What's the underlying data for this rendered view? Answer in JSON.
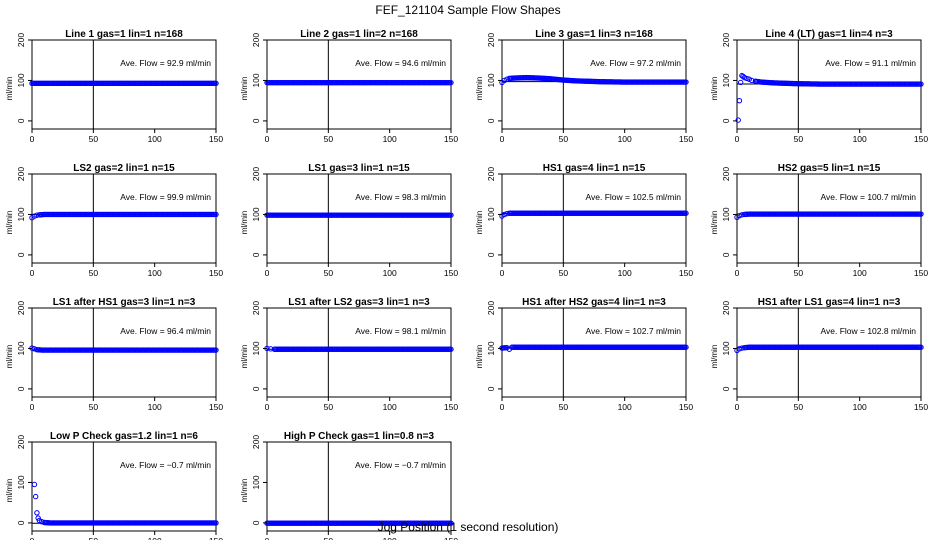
{
  "figure": {
    "title": "FEF_121104  Sample Flow Shapes",
    "xlabel": "Jog Position (1 second resolution)"
  },
  "colors": {
    "points": "#0000ff",
    "axes": "#000000",
    "background": "#ffffff"
  },
  "chart_data": [
    {
      "type": "scatter",
      "title": "Line 1 gas=1 lin=1 n=168",
      "ylabel": "ml/min",
      "annotation": "Ave. Flow = 92.9  ml/min",
      "xlim": [
        0,
        150
      ],
      "ylim": [
        -20,
        200
      ],
      "xticks": [
        0,
        50,
        100,
        150
      ],
      "yticks": [
        0,
        100,
        200
      ],
      "vline": 50,
      "hline": 92.9,
      "series": [
        {
          "x_range": [
            0,
            150
          ],
          "y": 92.9
        }
      ]
    },
    {
      "type": "scatter",
      "title": "Line 2 gas=1 lin=2 n=168",
      "ylabel": "ml/min",
      "annotation": "Ave. Flow = 94.6  ml/min",
      "xlim": [
        0,
        150
      ],
      "ylim": [
        -20,
        200
      ],
      "xticks": [
        0,
        50,
        100,
        150
      ],
      "yticks": [
        0,
        100,
        200
      ],
      "vline": 50,
      "hline": 94.6,
      "series": [
        {
          "x_range": [
            0,
            150
          ],
          "y": 94.6
        }
      ]
    },
    {
      "type": "scatter",
      "title": "Line 3 gas=1 lin=3 n=168",
      "ylabel": "ml/min",
      "annotation": "Ave. Flow = 97.2  ml/min",
      "xlim": [
        0,
        150
      ],
      "ylim": [
        -20,
        200
      ],
      "xticks": [
        0,
        50,
        100,
        150
      ],
      "yticks": [
        0,
        100,
        200
      ],
      "vline": 50,
      "hline": 97.2,
      "series": [
        {
          "points": [
            [
              0,
              95
            ],
            [
              2,
              100
            ],
            [
              4,
              103
            ],
            [
              6,
              105
            ],
            [
              10,
              106
            ],
            [
              20,
              107
            ],
            [
              30,
              106
            ],
            [
              40,
              104
            ],
            [
              50,
              101
            ],
            [
              60,
              99
            ],
            [
              70,
              98
            ],
            [
              80,
              97
            ],
            [
              100,
              96
            ],
            [
              150,
              96
            ]
          ]
        }
      ]
    },
    {
      "type": "scatter",
      "title": "Line 4 (LT) gas=1 lin=4 n=3",
      "ylabel": "ml/min",
      "annotation": "Ave. Flow = 91.1  ml/min",
      "xlim": [
        0,
        150
      ],
      "ylim": [
        -20,
        200
      ],
      "xticks": [
        0,
        50,
        100,
        150
      ],
      "yticks": [
        0,
        100,
        200
      ],
      "vline": 50,
      "hline": 91.1,
      "series": [
        {
          "points": [
            [
              1,
              2
            ],
            [
              2,
              50
            ],
            [
              3,
              95
            ],
            [
              4,
              112
            ],
            [
              5,
              110
            ],
            [
              6,
              107
            ],
            [
              8,
              105
            ],
            [
              10,
              103
            ],
            [
              12,
              100
            ],
            [
              15,
              98
            ],
            [
              20,
              96
            ],
            [
              25,
              95
            ],
            [
              30,
              94
            ],
            [
              40,
              93
            ],
            [
              50,
              92
            ],
            [
              70,
              91
            ],
            [
              100,
              91
            ],
            [
              150,
              91
            ]
          ]
        }
      ]
    },
    {
      "type": "scatter",
      "title": "LS2 gas=2 lin=1 n=15",
      "ylabel": "ml/min",
      "annotation": "Ave. Flow = 99.9  ml/min",
      "xlim": [
        0,
        150
      ],
      "ylim": [
        -20,
        200
      ],
      "xticks": [
        0,
        50,
        100,
        150
      ],
      "yticks": [
        0,
        100,
        200
      ],
      "vline": 50,
      "hline": 99.9,
      "series": [
        {
          "points": [
            [
              0,
              92
            ],
            [
              2,
              96
            ],
            [
              4,
              98
            ],
            [
              6,
              99
            ],
            [
              10,
              100
            ],
            [
              150,
              100
            ]
          ]
        }
      ]
    },
    {
      "type": "scatter",
      "title": "LS1 gas=3 lin=1 n=15",
      "ylabel": "ml/min",
      "annotation": "Ave. Flow = 98.3  ml/min",
      "xlim": [
        0,
        150
      ],
      "ylim": [
        -20,
        200
      ],
      "xticks": [
        0,
        50,
        100,
        150
      ],
      "yticks": [
        0,
        100,
        200
      ],
      "vline": 50,
      "hline": 98.3,
      "series": [
        {
          "x_range": [
            0,
            150
          ],
          "y": 98.3
        }
      ]
    },
    {
      "type": "scatter",
      "title": "HS1 gas=4 lin=1 n=15",
      "ylabel": "ml/min",
      "annotation": "Ave. Flow = 102.5  ml/min",
      "xlim": [
        0,
        150
      ],
      "ylim": [
        -20,
        200
      ],
      "xticks": [
        0,
        50,
        100,
        150
      ],
      "yticks": [
        0,
        100,
        200
      ],
      "vline": 50,
      "hline": 102.5,
      "series": [
        {
          "points": [
            [
              0,
              96
            ],
            [
              2,
              100
            ],
            [
              4,
              102
            ],
            [
              6,
              103
            ],
            [
              150,
              103
            ]
          ]
        }
      ]
    },
    {
      "type": "scatter",
      "title": "HS2 gas=5 lin=1 n=15",
      "ylabel": "ml/min",
      "annotation": "Ave. Flow = 100.7  ml/min",
      "xlim": [
        0,
        150
      ],
      "ylim": [
        -20,
        200
      ],
      "xticks": [
        0,
        50,
        100,
        150
      ],
      "yticks": [
        0,
        100,
        200
      ],
      "vline": 50,
      "hline": 100.7,
      "series": [
        {
          "points": [
            [
              0,
              93
            ],
            [
              2,
              97
            ],
            [
              4,
              99
            ],
            [
              6,
              100
            ],
            [
              10,
              101
            ],
            [
              150,
              101
            ]
          ]
        }
      ]
    },
    {
      "type": "scatter",
      "title": "LS1 after HS1 gas=3 lin=1 n=3",
      "ylabel": "ml/min",
      "annotation": "Ave. Flow = 96.4  ml/min",
      "xlim": [
        0,
        150
      ],
      "ylim": [
        -20,
        200
      ],
      "xticks": [
        0,
        50,
        100,
        150
      ],
      "yticks": [
        0,
        100,
        200
      ],
      "vline": 50,
      "hline": 96.4,
      "series": [
        {
          "points": [
            [
              0,
              101
            ],
            [
              2,
              99
            ],
            [
              4,
              97
            ],
            [
              8,
              96
            ],
            [
              150,
              96
            ]
          ]
        }
      ]
    },
    {
      "type": "scatter",
      "title": "LS1 after LS2 gas=3 lin=1 n=3",
      "ylabel": "ml/min",
      "annotation": "Ave. Flow = 98.1  ml/min",
      "xlim": [
        0,
        150
      ],
      "ylim": [
        -20,
        200
      ],
      "xticks": [
        0,
        50,
        100,
        150
      ],
      "yticks": [
        0,
        100,
        200
      ],
      "vline": 50,
      "hline": 98.1,
      "series": [
        {
          "points": [
            [
              0,
              100
            ],
            [
              3,
              99
            ],
            [
              6,
              98
            ],
            [
              150,
              98
            ]
          ]
        }
      ]
    },
    {
      "type": "scatter",
      "title": "HS1 after HS2 gas=4 lin=1 n=3",
      "ylabel": "ml/min",
      "annotation": "Ave. Flow = 102.7  ml/min",
      "xlim": [
        0,
        150
      ],
      "ylim": [
        -20,
        200
      ],
      "xticks": [
        0,
        50,
        100,
        150
      ],
      "yticks": [
        0,
        100,
        200
      ],
      "vline": 50,
      "hline": 102.7,
      "series": [
        {
          "points": [
            [
              0,
              101
            ],
            [
              4,
              102
            ],
            [
              6,
              98
            ],
            [
              8,
              103
            ],
            [
              150,
              103
            ]
          ]
        }
      ]
    },
    {
      "type": "scatter",
      "title": "HS1 after LS1 gas=4 lin=1 n=3",
      "ylabel": "ml/min",
      "annotation": "Ave. Flow = 102.8  ml/min",
      "xlim": [
        0,
        150
      ],
      "ylim": [
        -20,
        200
      ],
      "xticks": [
        0,
        50,
        100,
        150
      ],
      "yticks": [
        0,
        100,
        200
      ],
      "vline": 50,
      "hline": 102.8,
      "series": [
        {
          "points": [
            [
              0,
              95
            ],
            [
              2,
              99
            ],
            [
              4,
              101
            ],
            [
              6,
              102
            ],
            [
              10,
              103
            ],
            [
              150,
              103
            ]
          ]
        }
      ]
    },
    {
      "type": "scatter",
      "title": "Low P Check gas=1.2 lin=1 n=6",
      "ylabel": "ml/min",
      "annotation": "Ave. Flow = −0.7  ml/min",
      "xlim": [
        0,
        150
      ],
      "ylim": [
        -20,
        200
      ],
      "xticks": [
        0,
        50,
        100,
        150
      ],
      "yticks": [
        0,
        100,
        200
      ],
      "vline": 50,
      "hline": -0.7,
      "series": [
        {
          "points": [
            [
              2,
              95
            ],
            [
              3,
              65
            ],
            [
              4,
              25
            ],
            [
              5,
              12
            ],
            [
              6,
              6
            ],
            [
              8,
              3
            ],
            [
              10,
              1
            ],
            [
              15,
              0
            ],
            [
              150,
              0
            ]
          ]
        }
      ]
    },
    {
      "type": "scatter",
      "title": "High P Check gas=1 lin=0.8 n=3",
      "ylabel": "ml/min",
      "annotation": "Ave. Flow = −0.7  ml/min",
      "xlim": [
        0,
        150
      ],
      "ylim": [
        -20,
        200
      ],
      "xticks": [
        0,
        50,
        100,
        150
      ],
      "yticks": [
        0,
        100,
        200
      ],
      "vline": 50,
      "hline": -0.7,
      "series": [
        {
          "x_range": [
            0,
            150
          ],
          "y": -0.7
        }
      ]
    }
  ]
}
